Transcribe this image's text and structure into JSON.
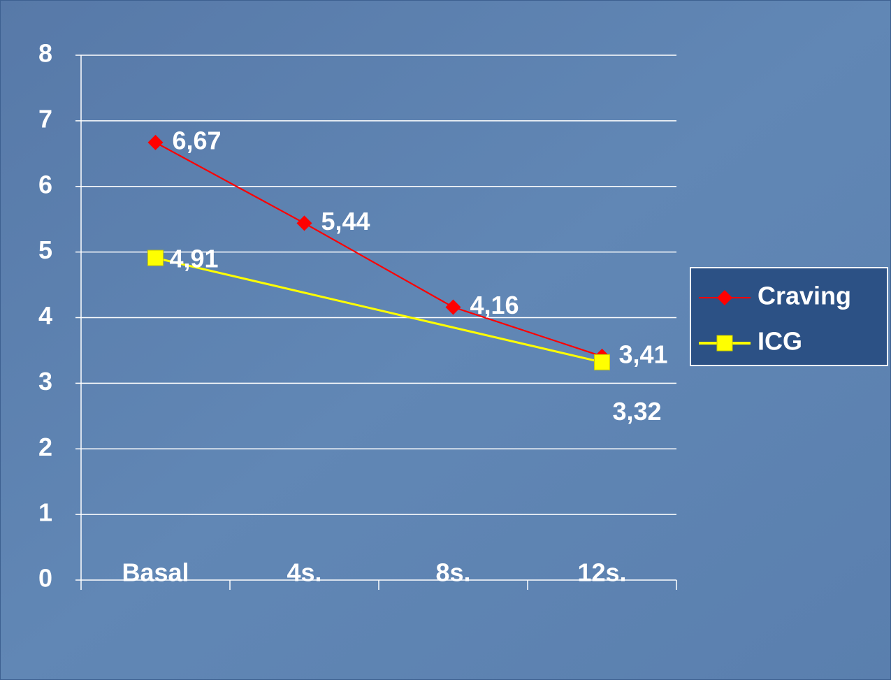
{
  "chart_data": {
    "type": "line",
    "categories": [
      "Basal",
      "4s.",
      "8s.",
      "12s."
    ],
    "series": [
      {
        "name": "Craving",
        "color": "#ff0000",
        "marker": "diamond",
        "values": [
          6.67,
          5.44,
          4.16,
          3.41
        ],
        "value_labels": [
          "6,67",
          "5,44",
          "4,16",
          "3,41"
        ]
      },
      {
        "name": "ICG",
        "color": "#ffff00",
        "marker": "square",
        "values": [
          4.91,
          null,
          null,
          3.32
        ],
        "value_labels": [
          "4,91",
          null,
          null,
          "3,32"
        ]
      }
    ],
    "ylim": [
      0,
      8
    ],
    "yticks": [
      0,
      1,
      2,
      3,
      4,
      5,
      6,
      7,
      8
    ],
    "grid": true,
    "legend": "right"
  }
}
